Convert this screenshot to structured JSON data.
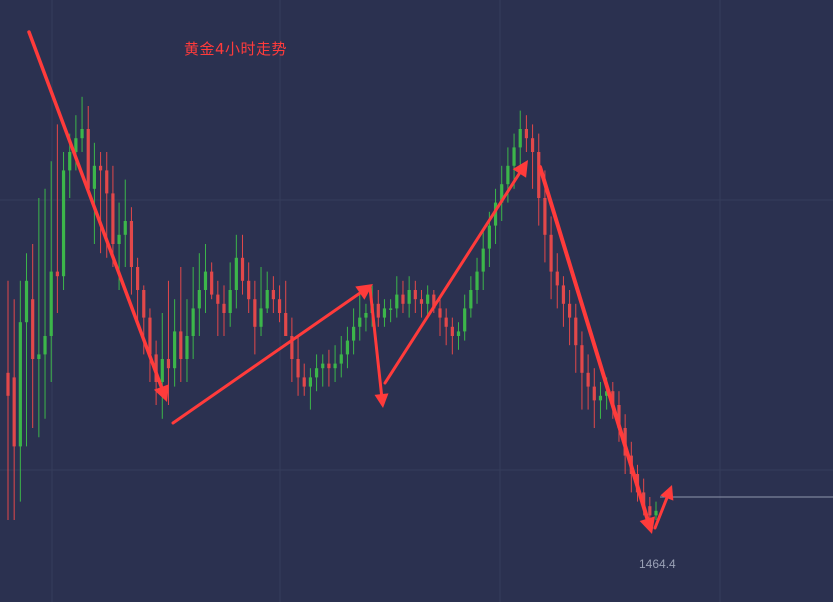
{
  "chart_data": {
    "type": "candlestick",
    "title": "黄金4小时走势",
    "low_label": "1464.4",
    "colors": {
      "background": "#2b3150",
      "grid": "#363d5b",
      "up": "#3cb64a",
      "down": "#e2484a",
      "arrow": "#ff3b3b",
      "title": "#ff3b3b",
      "low_label": "#9aa1b6",
      "price_line": "#8f96ad"
    },
    "candles": [
      [
        32,
        27,
        0,
        52
      ],
      [
        31,
        16,
        0,
        48
      ],
      [
        16,
        43,
        4,
        52
      ],
      [
        43,
        52,
        16,
        58
      ],
      [
        48,
        35,
        20,
        60
      ],
      [
        35,
        36,
        18,
        70
      ],
      [
        36,
        40,
        22,
        72
      ],
      [
        40,
        54,
        30,
        78
      ],
      [
        54,
        53,
        45,
        86
      ],
      [
        53,
        76,
        50,
        80
      ],
      [
        76,
        80,
        70,
        84
      ],
      [
        80,
        83,
        76,
        88
      ],
      [
        83,
        85,
        80,
        92
      ],
      [
        85,
        72,
        72,
        90
      ],
      [
        72,
        77,
        60,
        82
      ],
      [
        77,
        76,
        58,
        80
      ],
      [
        76,
        71,
        57,
        80
      ],
      [
        71,
        60,
        55,
        77
      ],
      [
        60,
        62,
        50,
        69
      ],
      [
        62,
        65,
        55,
        74
      ],
      [
        65,
        55,
        49,
        68
      ],
      [
        55,
        50,
        43,
        57
      ],
      [
        50,
        44,
        36,
        51
      ],
      [
        44,
        36,
        30,
        46
      ],
      [
        36,
        30,
        25,
        39
      ],
      [
        30,
        35,
        22,
        45
      ],
      [
        35,
        33,
        25,
        52
      ],
      [
        33,
        41,
        29,
        48
      ],
      [
        41,
        35,
        30,
        55
      ],
      [
        35,
        40,
        30,
        48
      ],
      [
        40,
        46,
        35,
        55
      ],
      [
        46,
        50,
        40,
        58
      ],
      [
        50,
        54,
        45,
        60
      ],
      [
        54,
        49,
        48,
        56
      ],
      [
        49,
        47,
        40,
        52
      ],
      [
        47,
        45,
        40,
        51
      ],
      [
        45,
        50,
        42,
        56
      ],
      [
        50,
        57,
        46,
        62
      ],
      [
        57,
        52,
        49,
        62
      ],
      [
        52,
        48,
        45,
        56
      ],
      [
        48,
        42,
        36,
        52
      ],
      [
        42,
        46,
        40,
        55
      ],
      [
        46,
        50,
        45,
        54
      ],
      [
        50,
        48,
        45,
        53
      ],
      [
        48,
        45,
        43,
        51
      ],
      [
        45,
        40,
        40,
        52
      ],
      [
        40,
        35,
        30,
        44
      ],
      [
        35,
        31,
        27,
        40
      ],
      [
        31,
        29,
        27,
        34
      ],
      [
        29,
        31,
        24,
        33
      ],
      [
        31,
        33,
        28,
        36
      ],
      [
        33,
        34,
        29,
        36
      ],
      [
        34,
        33,
        29,
        37
      ],
      [
        33,
        34,
        30,
        38
      ],
      [
        34,
        36,
        31,
        40
      ],
      [
        36,
        39,
        33,
        42
      ],
      [
        39,
        42,
        36,
        46
      ],
      [
        42,
        44,
        39,
        49
      ],
      [
        44,
        45,
        41,
        47
      ],
      [
        45,
        47,
        42,
        51
      ],
      [
        47,
        44,
        42,
        50
      ],
      [
        44,
        46,
        42,
        48
      ],
      [
        46,
        46,
        43,
        48
      ],
      [
        46,
        49,
        44,
        53
      ],
      [
        49,
        47,
        45,
        52
      ],
      [
        47,
        50,
        44,
        53
      ],
      [
        50,
        48,
        45,
        52
      ],
      [
        48,
        47,
        44,
        50
      ],
      [
        47,
        49,
        44,
        51
      ],
      [
        49,
        46,
        45,
        50
      ],
      [
        46,
        44,
        40,
        48
      ],
      [
        44,
        42,
        38,
        46
      ],
      [
        42,
        40,
        36,
        44
      ],
      [
        40,
        41,
        37,
        43
      ],
      [
        41,
        46,
        39,
        49
      ],
      [
        46,
        50,
        44,
        53
      ],
      [
        50,
        54,
        47,
        57
      ],
      [
        54,
        59,
        50,
        63
      ],
      [
        59,
        64,
        55,
        67
      ],
      [
        64,
        69,
        60,
        72
      ],
      [
        69,
        73,
        65,
        77
      ],
      [
        73,
        77,
        69,
        81
      ],
      [
        77,
        81,
        72,
        84
      ],
      [
        81,
        85,
        76,
        89
      ],
      [
        85,
        83,
        80,
        88
      ],
      [
        83,
        80,
        72,
        86
      ],
      [
        80,
        70,
        64,
        84
      ],
      [
        70,
        62,
        56,
        76
      ],
      [
        62,
        54,
        48,
        66
      ],
      [
        54,
        51,
        46,
        58
      ],
      [
        51,
        47,
        42,
        53
      ],
      [
        47,
        44,
        38,
        50
      ],
      [
        44,
        38,
        32,
        47
      ],
      [
        38,
        32,
        24,
        41
      ],
      [
        32,
        29,
        24,
        36
      ],
      [
        29,
        26,
        20,
        33
      ],
      [
        26,
        27,
        22,
        30
      ],
      [
        27,
        28,
        24,
        31
      ],
      [
        28,
        25,
        22,
        30
      ],
      [
        25,
        20,
        17,
        28
      ],
      [
        20,
        14,
        10,
        23
      ],
      [
        14,
        10,
        6,
        17
      ],
      [
        10,
        6,
        4,
        12
      ],
      [
        6,
        3,
        1,
        9
      ],
      [
        3,
        1,
        0,
        5
      ],
      [
        1,
        2,
        0,
        4
      ]
    ]
  }
}
